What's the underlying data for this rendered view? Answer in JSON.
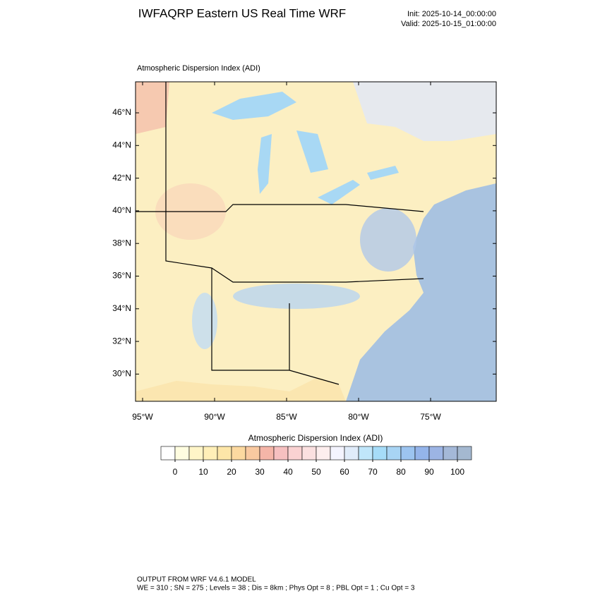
{
  "header": {
    "title": "IWFAQRP Eastern US Real Time WRF",
    "init": "Init: 2025-10-14_00:00:00",
    "valid": "Valid: 2025-10-15_01:00:00"
  },
  "map": {
    "subtitle": "Atmospheric Dispersion Index   (ADI)",
    "lat_ticks": [
      {
        "value": 46,
        "label": "46°N"
      },
      {
        "value": 44,
        "label": "44°N"
      },
      {
        "value": 42,
        "label": "42°N"
      },
      {
        "value": 40,
        "label": "40°N"
      },
      {
        "value": 38,
        "label": "38°N"
      },
      {
        "value": 36,
        "label": "36°N"
      },
      {
        "value": 34,
        "label": "34°N"
      },
      {
        "value": 32,
        "label": "32°N"
      },
      {
        "value": 30,
        "label": "30°N"
      }
    ],
    "lon_ticks": [
      {
        "value": -95,
        "label": "95°W"
      },
      {
        "value": -90,
        "label": "90°W"
      },
      {
        "value": -85,
        "label": "85°W"
      },
      {
        "value": -80,
        "label": "80°W"
      },
      {
        "value": -75,
        "label": "75°W"
      }
    ],
    "colorbar": {
      "title": "Atmospheric Dispersion Index  (ADI)",
      "ticks": [
        0,
        10,
        20,
        30,
        40,
        50,
        60,
        70,
        80,
        90,
        100
      ],
      "colors": [
        "#ffffff",
        "#fffde0",
        "#fff5c8",
        "#ffefb8",
        "#fde6a8",
        "#fcd9a0",
        "#f9c9a0",
        "#f5b5a8",
        "#f6c0c0",
        "#fad2d2",
        "#fbe0e0",
        "#fdeeee",
        "#f4f4ff",
        "#e0ecfa",
        "#c0e6fa",
        "#a6dcf8",
        "#a8d4f4",
        "#9cc4f0",
        "#94b4ea",
        "#9cb4e4",
        "#a4b8d8",
        "#a4b8d0"
      ]
    }
  },
  "footer": {
    "line1": "OUTPUT FROM WRF V4.6.1 MODEL",
    "line2": "WE = 310 ; SN = 275 ; Levels = 38 ; Dis = 8km ; Phys Opt = 8 ; PBL Opt = 1 ; Cu Opt = 3"
  }
}
